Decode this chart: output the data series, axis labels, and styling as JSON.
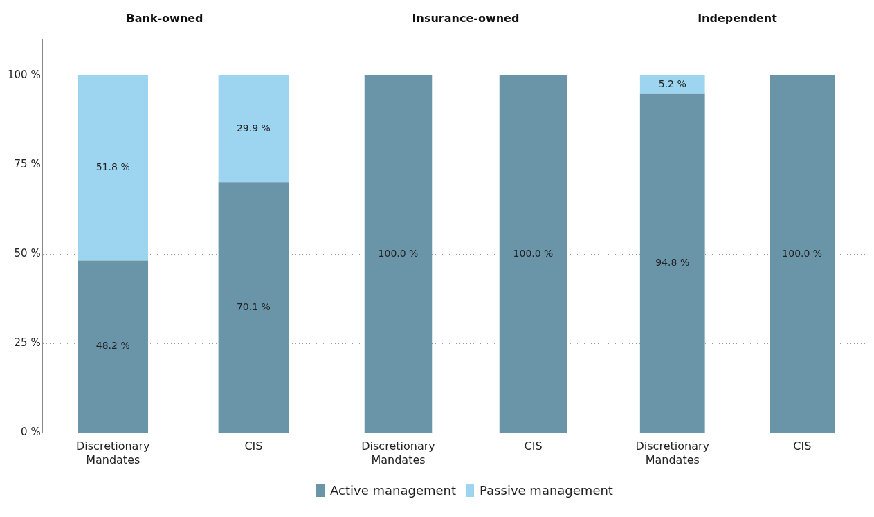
{
  "chart_data": [
    {
      "type": "bar",
      "title": "Bank-owned",
      "categories": [
        "Discretionary Mandates",
        "CIS"
      ],
      "stacked": true,
      "ylim": [
        0,
        110
      ],
      "yticks": [
        {
          "value": 0,
          "label": "0 %"
        },
        {
          "value": 25,
          "label": "25 %"
        },
        {
          "value": 50,
          "label": "50 %"
        },
        {
          "value": 75,
          "label": "75 %"
        },
        {
          "value": 100,
          "label": "100 %"
        }
      ],
      "grid": "y",
      "series": [
        {
          "color": "#6a95a8",
          "values": [
            48.2,
            70.1
          ],
          "value_labels": [
            "48.2 %",
            "70.1 %"
          ]
        },
        {
          "color": "#9dd5f0",
          "values": [
            51.8,
            29.9
          ],
          "value_labels": [
            "51.8 %",
            "29.9 %"
          ]
        }
      ]
    },
    {
      "type": "bar",
      "title": "Insurance-owned",
      "categories": [
        "Discretionary Mandates",
        "CIS"
      ],
      "stacked": true,
      "ylim": [
        0,
        110
      ],
      "yticks": [
        0,
        25,
        50,
        75,
        100
      ],
      "grid": "y",
      "tick_labels": "x",
      "legend": "bottom",
      "series": [
        {
          "name": "Active management",
          "color": "#6a95a8",
          "values": [
            100,
            100
          ],
          "value_labels": [
            "100.0 %",
            "100.0 %"
          ]
        },
        {
          "name": "Passive management",
          "color": "#9dd5f0",
          "values": [
            0,
            0
          ],
          "value_labels": [
            null,
            null
          ]
        }
      ]
    },
    {
      "type": "bar",
      "title": "Independent",
      "categories": [
        "Discretionary Mandates",
        "CIS"
      ],
      "stacked": true,
      "ylim": [
        0,
        110
      ],
      "yticks": [
        0,
        25,
        50,
        75,
        100
      ],
      "grid": "y",
      "tick_labels": "x",
      "series": [
        {
          "color": "#6a95a8",
          "values": [
            94.8,
            100
          ],
          "value_labels": [
            "94.8 %",
            "100.0 %"
          ]
        },
        {
          "color": "#9dd5f0",
          "values": [
            5.2,
            0
          ],
          "value_labels": [
            "5.2 %",
            null
          ]
        }
      ]
    }
  ]
}
